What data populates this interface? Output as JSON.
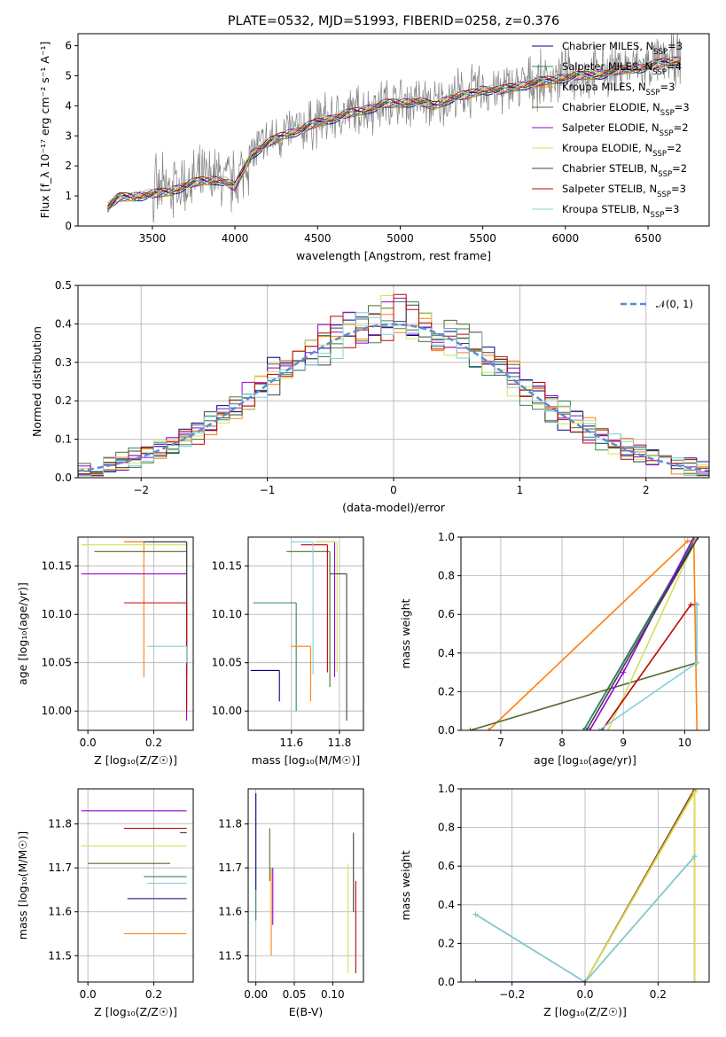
{
  "figure": {
    "title": "PLATE=0532, MJD=51993, FIBERID=0258, z=0.376"
  },
  "series": [
    {
      "name": "Chabrier MILES",
      "nssp": "3",
      "color": "#000080"
    },
    {
      "name": "Salpeter MILES",
      "nssp": "4",
      "color": "#2e8b57"
    },
    {
      "name": "Kroupa MILES",
      "nssp": "3",
      "color": "#ff7f0e"
    },
    {
      "name": "Chabrier ELODIE",
      "nssp": "3",
      "color": "#556b2f"
    },
    {
      "name": "Salpeter ELODIE",
      "nssp": "2",
      "color": "#9400d3"
    },
    {
      "name": "Kroupa ELODIE",
      "nssp": "2",
      "color": "#d4e157"
    },
    {
      "name": "Chabrier STELIB",
      "nssp": "2",
      "color": "#404040"
    },
    {
      "name": "Salpeter STELIB",
      "nssp": "3",
      "color": "#c00000"
    },
    {
      "name": "Kroupa STELIB",
      "nssp": "3",
      "color": "#80d0d8"
    }
  ],
  "chart_data": [
    {
      "id": "spectrum",
      "type": "line",
      "xlabel": "wavelength [Angstrom, rest frame]",
      "ylabel": "Flux [f_λ 10⁻¹⁷ erg cm⁻² s⁻¹ A⁻¹]",
      "xlim": [
        3050,
        6870
      ],
      "ylim": [
        0,
        6.4
      ],
      "xticks": [
        3500,
        4000,
        4500,
        5000,
        5500,
        6000,
        6500
      ],
      "yticks": [
        0,
        1,
        2,
        3,
        4,
        5,
        6
      ],
      "data_color": "#808080",
      "data_x": [
        3230,
        3300,
        3400,
        3500,
        3600,
        3700,
        3800,
        3900,
        4000,
        4100,
        4200,
        4300,
        4400,
        4500,
        4600,
        4700,
        4800,
        4900,
        5000,
        5100,
        5200,
        5300,
        5400,
        5500,
        5600,
        5700,
        5800,
        5900,
        6000,
        6100,
        6200,
        6300,
        6400,
        6500,
        6600,
        6700
      ],
      "data_y": [
        0.7,
        1.0,
        1.0,
        1.1,
        1.2,
        1.4,
        1.5,
        1.6,
        1.4,
        2.4,
        2.8,
        3.1,
        3.2,
        3.5,
        3.6,
        3.8,
        3.9,
        4.1,
        4.1,
        4.2,
        4.0,
        4.3,
        4.4,
        4.6,
        4.5,
        4.7,
        4.8,
        4.9,
        5.0,
        5.0,
        5.1,
        5.2,
        5.3,
        5.3,
        5.5,
        5.6
      ],
      "model_x": [
        3230,
        3300,
        3400,
        3500,
        3600,
        3700,
        3800,
        3900,
        4000,
        4100,
        4200,
        4300,
        4400,
        4500,
        4600,
        4700,
        4800,
        4900,
        5000,
        5100,
        5200,
        5300,
        5400,
        5500,
        5600,
        5700,
        5800,
        5900,
        6000,
        6100,
        6200,
        6300,
        6400,
        6500,
        6600,
        6700
      ],
      "model_y": [
        0.6,
        0.95,
        1.0,
        1.05,
        1.15,
        1.35,
        1.5,
        1.55,
        1.3,
        2.4,
        2.75,
        3.05,
        3.2,
        3.45,
        3.6,
        3.75,
        3.9,
        4.05,
        4.1,
        4.15,
        4.0,
        4.25,
        4.35,
        4.55,
        4.5,
        4.65,
        4.75,
        4.85,
        4.95,
        5.0,
        5.05,
        5.15,
        5.25,
        5.3,
        5.45,
        5.55
      ]
    },
    {
      "id": "residuals",
      "type": "line",
      "xlabel": "(data-model)/error",
      "ylabel": "Normed distribution",
      "xlim": [
        -2.5,
        2.5
      ],
      "ylim": [
        0,
        0.5
      ],
      "xticks": [
        -2,
        -1,
        0,
        1,
        2
      ],
      "yticks": [
        0.0,
        0.1,
        0.2,
        0.3,
        0.4,
        0.5
      ],
      "normal_label": "𝒩(0, 1)",
      "normal_color": "#5b8bd6",
      "bin_width": 0.1
    },
    {
      "id": "age-vs-z",
      "type": "scatter",
      "xlabel": "Z [log₁₀(Z/Z☉)]",
      "ylabel": "age  [log₁₀(age/yr)]",
      "xlim": [
        -0.03,
        0.32
      ],
      "ylim": [
        9.98,
        10.18
      ],
      "xticks": [
        0.0,
        0.2
      ],
      "yticks": [
        10.0,
        10.05,
        10.1,
        10.15
      ],
      "points": [
        {
          "x": 0.3,
          "xlo": 0.11,
          "y": 10.175,
          "ylo": 10.04
        },
        {
          "x": 0.3,
          "xlo": 0.17,
          "y": 10.175,
          "ylo": 10.035
        },
        {
          "x": 0.17,
          "xlo": 0.11,
          "y": 10.175,
          "ylo": 10.035
        },
        {
          "x": 0.3,
          "xlo": 0.02,
          "y": 10.165,
          "ylo": 10.025
        },
        {
          "x": 0.3,
          "xlo": -0.02,
          "y": 10.142,
          "ylo": 9.99
        },
        {
          "x": 0.3,
          "xlo": -0.02,
          "y": 10.172,
          "ylo": 10.04
        },
        {
          "x": 0.3,
          "xlo": 0.17,
          "y": 10.175,
          "ylo": 10.038
        },
        {
          "x": 0.3,
          "xlo": 0.11,
          "y": 10.112,
          "ylo": 10.0
        },
        {
          "x": 0.3,
          "xlo": 0.18,
          "y": 10.067,
          "ylo": 10.05
        }
      ]
    },
    {
      "id": "age-vs-mass",
      "type": "scatter",
      "xlabel": "mass [log₁₀(M/M☉)]",
      "ylabel": "",
      "xlim": [
        11.42,
        11.9
      ],
      "ylim": [
        9.98,
        10.18
      ],
      "xticks": [
        11.6,
        11.8
      ],
      "yticks": [
        10.0,
        10.05,
        10.1,
        10.15
      ],
      "points": [
        {
          "x": 11.55,
          "xlo": 11.43,
          "y": 10.042,
          "ylo": 10.01
        },
        {
          "x": 11.62,
          "xlo": 11.44,
          "y": 10.112,
          "ylo": 10.0
        },
        {
          "x": 11.68,
          "xlo": 11.6,
          "y": 10.067,
          "ylo": 10.01
        },
        {
          "x": 11.76,
          "xlo": 11.58,
          "y": 10.165,
          "ylo": 10.025
        },
        {
          "x": 11.78,
          "xlo": 11.7,
          "y": 10.175,
          "ylo": 10.035
        },
        {
          "x": 11.79,
          "xlo": 11.7,
          "y": 10.175,
          "ylo": 10.04
        },
        {
          "x": 11.83,
          "xlo": 11.76,
          "y": 10.142,
          "ylo": 9.99
        },
        {
          "x": 11.75,
          "xlo": 11.64,
          "y": 10.172,
          "ylo": 10.04
        },
        {
          "x": 11.69,
          "xlo": 11.6,
          "y": 10.175,
          "ylo": 10.038
        }
      ]
    },
    {
      "id": "weight-vs-age",
      "type": "line",
      "xlabel": "age  [log₁₀(age/yr)]",
      "ylabel": "mass weight",
      "xlim": [
        6.35,
        10.4
      ],
      "ylim": [
        0,
        1.0
      ],
      "xticks": [
        7,
        8,
        9,
        10
      ],
      "yticks": [
        0.0,
        0.2,
        0.4,
        0.6,
        0.8,
        1.0
      ],
      "curves": [
        {
          "s": 0,
          "x": [
            8.35,
            10.2,
            10.2
          ],
          "y": [
            0,
            1.0,
            1.0
          ]
        },
        {
          "s": 1,
          "x": [
            8.35,
            10.15,
            10.15
          ],
          "y": [
            0,
            0.98,
            0.98
          ]
        },
        {
          "s": 2,
          "x": [
            6.8,
            10.05,
            10.15,
            10.2
          ],
          "y": [
            0,
            0.98,
            0.98,
            0
          ]
        },
        {
          "s": 3,
          "x": [
            6.5,
            10.2,
            10.2
          ],
          "y": [
            0,
            0.35,
            0.65
          ]
        },
        {
          "s": 4,
          "x": [
            8.45,
            9.0,
            10.15
          ],
          "y": [
            0,
            0.3,
            1.0
          ]
        },
        {
          "s": 5,
          "x": [
            8.75,
            10.2,
            10.2
          ],
          "y": [
            0,
            1.0,
            1.0
          ]
        },
        {
          "s": 6,
          "x": [
            8.4,
            10.22,
            10.22
          ],
          "y": [
            0,
            1.0,
            1.0
          ]
        },
        {
          "s": 7,
          "x": [
            8.65,
            10.1,
            10.2
          ],
          "y": [
            0,
            0.65,
            0.65
          ]
        },
        {
          "s": 8,
          "x": [
            8.6,
            10.2,
            10.2
          ],
          "y": [
            0,
            0.35,
            0.65
          ]
        }
      ]
    },
    {
      "id": "mass-vs-z",
      "type": "scatter",
      "xlabel": "Z [log₁₀(Z/Z☉)]",
      "ylabel": "mass [log₁₀(M/M☉)]",
      "xlim": [
        -0.03,
        0.32
      ],
      "ylim": [
        11.44,
        11.88
      ],
      "xticks": [
        0.0,
        0.2
      ],
      "yticks": [
        11.5,
        11.6,
        11.7,
        11.8
      ],
      "points": [
        {
          "x": 0.3,
          "xlo": 0.12,
          "y": 11.63,
          "ylo": 11.63
        },
        {
          "x": 0.3,
          "xlo": 0.17,
          "y": 11.68,
          "ylo": 11.68
        },
        {
          "x": 0.3,
          "xlo": 0.11,
          "y": 11.55,
          "ylo": 11.55
        },
        {
          "x": 0.25,
          "xlo": 0.0,
          "y": 11.71,
          "ylo": 11.71
        },
        {
          "x": 0.3,
          "xlo": -0.02,
          "y": 11.83,
          "ylo": 11.83
        },
        {
          "x": 0.3,
          "xlo": -0.02,
          "y": 11.75,
          "ylo": 11.75
        },
        {
          "x": 0.3,
          "xlo": 0.28,
          "y": 11.78,
          "ylo": 11.78
        },
        {
          "x": 0.3,
          "xlo": 0.11,
          "y": 11.79,
          "ylo": 11.79
        },
        {
          "x": 0.3,
          "xlo": 0.18,
          "y": 11.665,
          "ylo": 11.665
        }
      ]
    },
    {
      "id": "mass-vs-ebv",
      "type": "scatter",
      "xlabel": "E(B-V)",
      "ylabel": "",
      "xlim": [
        -0.01,
        0.14
      ],
      "ylim": [
        11.44,
        11.88
      ],
      "xticks": [
        0.0,
        0.05,
        0.1
      ],
      "yticks": [
        11.5,
        11.6,
        11.7,
        11.8
      ],
      "points": [
        {
          "x": 0.0,
          "ylo": 11.65,
          "yhi": 11.87
        },
        {
          "x": 0.0,
          "ylo": 11.58,
          "yhi": 11.65
        },
        {
          "x": 0.02,
          "ylo": 11.5,
          "yhi": 11.7
        },
        {
          "x": 0.018,
          "ylo": 11.67,
          "yhi": 11.79
        },
        {
          "x": 0.022,
          "ylo": 11.57,
          "yhi": 11.7
        },
        {
          "x": 0.12,
          "ylo": 11.46,
          "yhi": 11.71
        },
        {
          "x": 0.127,
          "ylo": 11.6,
          "yhi": 11.78
        },
        {
          "x": 0.13,
          "ylo": 11.46,
          "yhi": 11.67
        }
      ]
    },
    {
      "id": "weight-vs-z",
      "type": "line",
      "xlabel": "Z [log₁₀(Z/Z☉)]",
      "ylabel": "mass weight",
      "xlim": [
        -0.34,
        0.34
      ],
      "ylim": [
        0,
        1.0
      ],
      "xticks": [
        -0.2,
        0.0,
        0.2
      ],
      "yticks": [
        0.0,
        0.2,
        0.4,
        0.6,
        0.8,
        1.0
      ],
      "curves": [
        {
          "s": 6,
          "x": [
            0.0,
            0.3,
            0.3
          ],
          "y": [
            0,
            1.0,
            0.99
          ]
        },
        {
          "s": 2,
          "x": [
            0.0,
            0.3,
            0.3
          ],
          "y": [
            0,
            0.99,
            0.0
          ]
        },
        {
          "s": 5,
          "x": [
            0.0,
            0.3,
            0.3
          ],
          "y": [
            0,
            0.98,
            0.0
          ]
        },
        {
          "s": 3,
          "x": [
            -0.3,
            0.0,
            0.3,
            0.3
          ],
          "y": [
            0.35,
            0,
            0.65,
            0.65
          ]
        },
        {
          "s": 8,
          "x": [
            -0.3,
            0.0,
            0.3,
            0.3
          ],
          "y": [
            0.35,
            0,
            0.65,
            0.65
          ]
        },
        {
          "s": 4,
          "x": [
            -0.3,
            0.0
          ],
          "y": [
            0.0,
            0.0
          ]
        }
      ]
    }
  ]
}
